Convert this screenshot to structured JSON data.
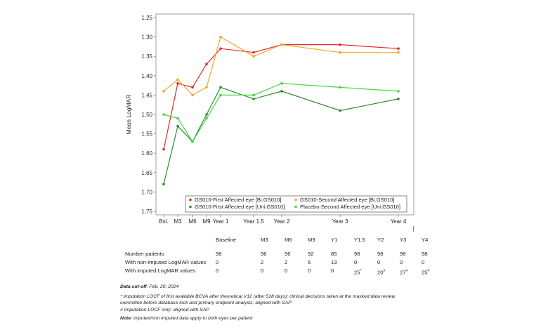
{
  "chart_data": {
    "type": "line",
    "title": "",
    "ylabel": "Mean LogMAR",
    "xlabel": "",
    "y_inverted": true,
    "ylim": [
      1.25,
      1.75
    ],
    "y_ticks": [
      "1.25",
      "1.30",
      "1.35",
      "1.40",
      "1.45",
      "1.50",
      "1.55",
      "1.60",
      "1.65",
      "1.70",
      "1.75"
    ],
    "x_ticks": [
      {
        "label": "Bsl.",
        "day": 0
      },
      {
        "label": "M3",
        "day": 90
      },
      {
        "label": "M6",
        "day": 180
      },
      {
        "label": "M9",
        "day": 270
      },
      {
        "label": "Year 1",
        "day": 365
      },
      {
        "label": "Year 1.5",
        "day": 547
      },
      {
        "label": "Year 2",
        "day": 730
      },
      {
        "label": "Year 3",
        "day": 1095
      },
      {
        "label": "Year 4",
        "day": 1460
      }
    ],
    "series": [
      {
        "name": "GS010-First Affected eye [Bi.GS010]",
        "color": "#e8262a",
        "x": [
          0,
          90,
          180,
          270,
          365,
          547,
          730,
          1095,
          1460
        ],
        "y": [
          1.59,
          1.42,
          1.43,
          1.37,
          1.33,
          1.34,
          1.32,
          1.32,
          1.33
        ]
      },
      {
        "name": "GS010-Second Affected eye [Bi.GS010]",
        "color": "#f5a623",
        "x": [
          0,
          90,
          180,
          270,
          365,
          547,
          730,
          1095,
          1460
        ],
        "y": [
          1.44,
          1.41,
          1.45,
          1.43,
          1.3,
          1.35,
          1.32,
          1.34,
          1.34
        ]
      },
      {
        "name": "GS010-First Affected eye [Uni.GS010]",
        "color": "#2e8b2e",
        "x": [
          0,
          90,
          180,
          270,
          365,
          547,
          730,
          1095,
          1460
        ],
        "y": [
          1.68,
          1.53,
          1.57,
          1.5,
          1.43,
          1.46,
          1.44,
          1.49,
          1.46
        ]
      },
      {
        "name": "Placebo-Second Affected eye [Uni.GS010]",
        "color": "#3fd83f",
        "x": [
          0,
          90,
          180,
          270,
          365,
          547,
          730,
          1095,
          1460
        ],
        "y": [
          1.5,
          1.51,
          1.57,
          1.51,
          1.45,
          1.45,
          1.42,
          1.43,
          1.44
        ]
      }
    ],
    "legend_position": "bottom-right"
  },
  "table": {
    "columns": [
      "Baseline",
      "M3",
      "M6",
      "M9",
      "Y1",
      "Y1.5",
      "Y2",
      "Y3",
      "Y4"
    ],
    "rows": [
      {
        "label": "Number patients",
        "values": [
          "98",
          "96",
          "96",
          "92",
          "85",
          "98",
          "98",
          "98",
          "98"
        ],
        "sups": [
          "",
          "",
          "",
          "",
          "",
          "",
          "",
          "",
          ""
        ]
      },
      {
        "label": "With non-imputed LogMAR values",
        "values": [
          "0",
          "2",
          "2",
          "6",
          "13",
          "0",
          "0",
          "0",
          "0"
        ],
        "sups": [
          "",
          "",
          "",
          "",
          "",
          "",
          "",
          "",
          ""
        ]
      },
      {
        "label": "With imputed LogMAR values",
        "values": [
          "0",
          "0",
          "0",
          "0",
          "0",
          "25",
          "20",
          "27",
          "25"
        ],
        "sups": [
          "",
          "",
          "",
          "",
          "",
          "*",
          "#",
          "#",
          "#"
        ]
      }
    ]
  },
  "notes": {
    "cutoff_label": "Data cut-off",
    "cutoff_value": ": Feb. 20, 2024",
    "star_note_line1": "* Imputation LOCF of first available BCVA after theoretical V12 (after 518 days): clinical decisions taken at the masked data review",
    "star_note_line2": "committee before database lock and primary endpoint analysis; aligned with SAP",
    "hash_note": "# Imputation LOCF only: aligned with SAP",
    "note_label": "Note",
    "note_value": ": imputed/non imputed data apply to both eyes per patient"
  }
}
